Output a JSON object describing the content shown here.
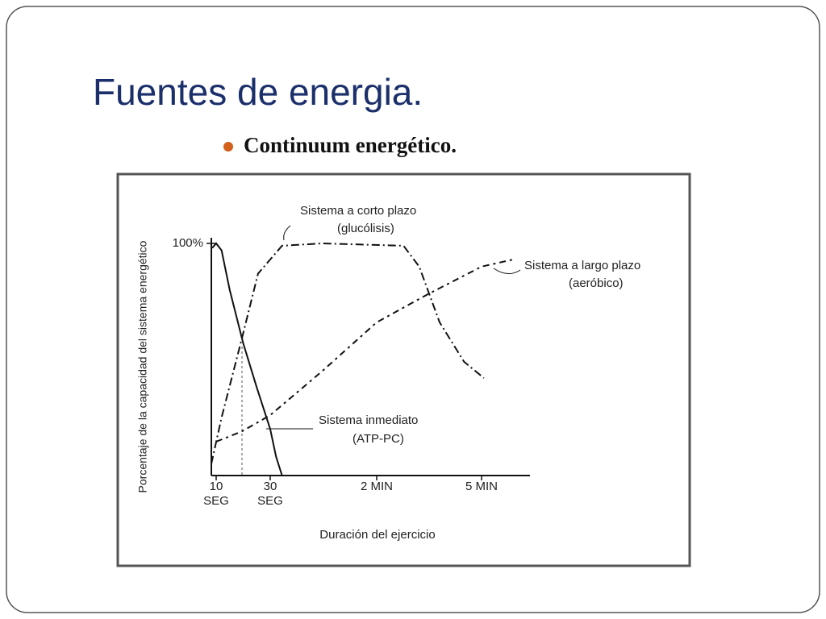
{
  "header": {
    "title": "Fuentes de energia.",
    "bullet": "Continuum energético."
  },
  "chart_data": {
    "type": "line",
    "xlabel": "Duración del ejercicio",
    "ylabel": "Porcentaje de la capacidad del sistema energético",
    "xlim": [
      8,
      380
    ],
    "xticks": [
      {
        "value": 10,
        "label": "10 SEG"
      },
      {
        "value": 30,
        "label": "30 SEG"
      },
      {
        "value": 120,
        "label": "2 MIN"
      },
      {
        "value": 300,
        "label": "5 MIN"
      }
    ],
    "ylim": [
      0,
      100
    ],
    "yticks": [
      {
        "value": 100,
        "label": "100%"
      }
    ],
    "series": [
      {
        "name": "Sistema inmediato",
        "label": "(ATP-PC)",
        "color": "#111111",
        "style": "solid",
        "x": [
          8.5,
          10,
          12,
          15,
          20,
          25,
          30,
          35,
          40
        ],
        "values": [
          98,
          100,
          97,
          80,
          57,
          38,
          20,
          8,
          0
        ]
      },
      {
        "name": "Sistema a corto plazo",
        "label": "(glucólisis)",
        "color": "#111111",
        "style": "dashdot",
        "x": [
          8.2,
          12,
          19.5,
          25.5,
          40,
          74,
          166,
          193,
          228,
          270,
          304
        ],
        "values": [
          5,
          25,
          59,
          87,
          99,
          100,
          99,
          90,
          66,
          49,
          42
        ]
      },
      {
        "name": "Sistema a largo plazo",
        "label": "(aeróbico)",
        "color": "#111111",
        "style": "dotted",
        "x": [
          10,
          19.5,
          30,
          74,
          120,
          207,
          300,
          353
        ],
        "values": [
          14.6,
          19,
          26,
          45,
          66,
          78,
          90,
          93
        ]
      }
    ]
  }
}
